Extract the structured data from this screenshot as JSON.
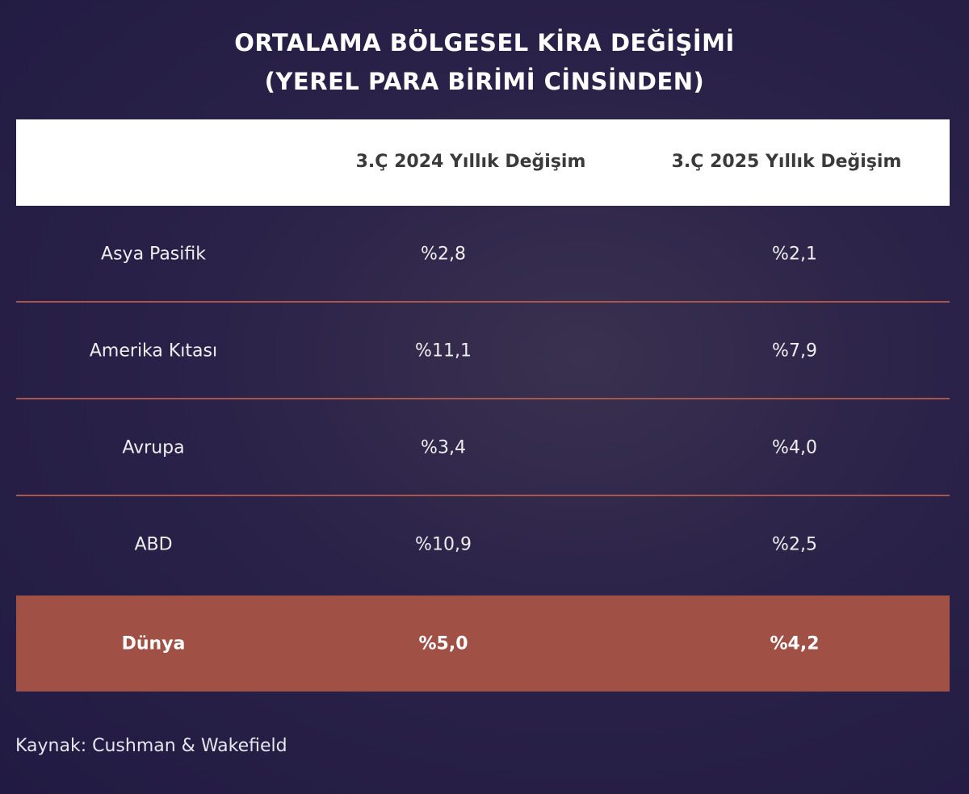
{
  "title_line1": "ORTALAMA BÖLGESEL KİRA DEĞİŞİMİ",
  "title_line2": "(YEREL PARA BİRİMİ CİNSİNDEN)",
  "colors": {
    "background": "#231c45",
    "accent": "#a05045",
    "separator": "#a9574a",
    "header_bg": "#ffffff"
  },
  "chart_data": {
    "type": "table",
    "title": "ORTALAMA BÖLGESEL KİRA DEĞİŞİMİ (YEREL PARA BİRİMİ CİNSİNDEN)",
    "columns": [
      "",
      "3.Ç 2024 Yıllık Değişim",
      "3.Ç 2025 Yıllık Değişim"
    ],
    "rows": [
      {
        "region": "Asya Pasifik",
        "q3_2024": "%2,8",
        "q3_2025": "%2,1"
      },
      {
        "region": "Amerika Kıtası",
        "q3_2024": "%11,1",
        "q3_2025": "%7,9"
      },
      {
        "region": "Avrupa",
        "q3_2024": "%3,4",
        "q3_2025": "%4,0"
      },
      {
        "region": "ABD",
        "q3_2024": "%10,9",
        "q3_2025": "%2,5"
      },
      {
        "region": "Dünya",
        "q3_2024": "%5,0",
        "q3_2025": "%4,2",
        "highlight": true
      }
    ]
  },
  "source": "Kaynak: Cushman & Wakefield"
}
